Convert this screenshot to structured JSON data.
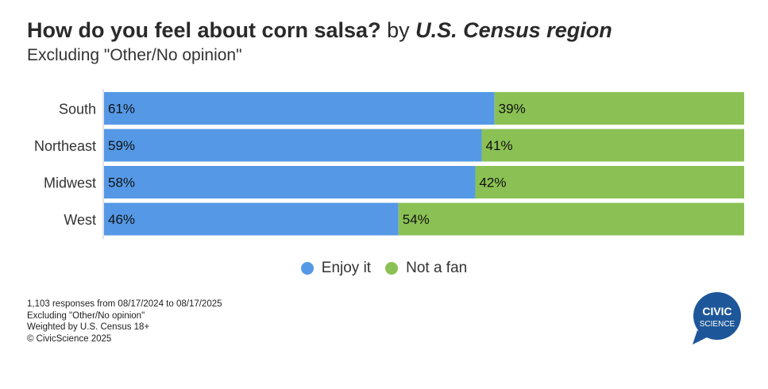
{
  "header": {
    "title_main": "How do you feel about corn salsa?",
    "title_by": "by",
    "title_region": "U.S. Census region",
    "subtitle": "Excluding \"Other/No opinion\""
  },
  "chart_data": {
    "type": "bar",
    "stacked": true,
    "orientation": "horizontal",
    "categories": [
      "South",
      "Northeast",
      "Midwest",
      "West"
    ],
    "series": [
      {
        "name": "Enjoy it",
        "values": [
          61,
          59,
          58,
          46
        ],
        "labels": [
          "61%",
          "59%",
          "58%",
          "46%"
        ],
        "color": "#5599e6"
      },
      {
        "name": "Not a fan",
        "values": [
          39,
          41,
          42,
          54
        ],
        "labels": [
          "39%",
          "41%",
          "42%",
          "54%"
        ],
        "color": "#8bc154"
      }
    ],
    "xlim": [
      0,
      100
    ],
    "legend": "bottom-center",
    "grid": false
  },
  "legend": {
    "items": [
      {
        "label": "Enjoy it",
        "color": "#5599e6"
      },
      {
        "label": "Not a fan",
        "color": "#8bc154"
      }
    ]
  },
  "footer": {
    "lines": [
      "1,103 responses from 08/17/2024 to 08/17/2025",
      "Excluding \"Other/No opinion\"",
      "Weighted by U.S. Census 18+",
      "© CivicScience 2025"
    ]
  },
  "logo": {
    "line1": "CIVIC",
    "line2": "SCIENCE",
    "color": "#1e5799"
  }
}
